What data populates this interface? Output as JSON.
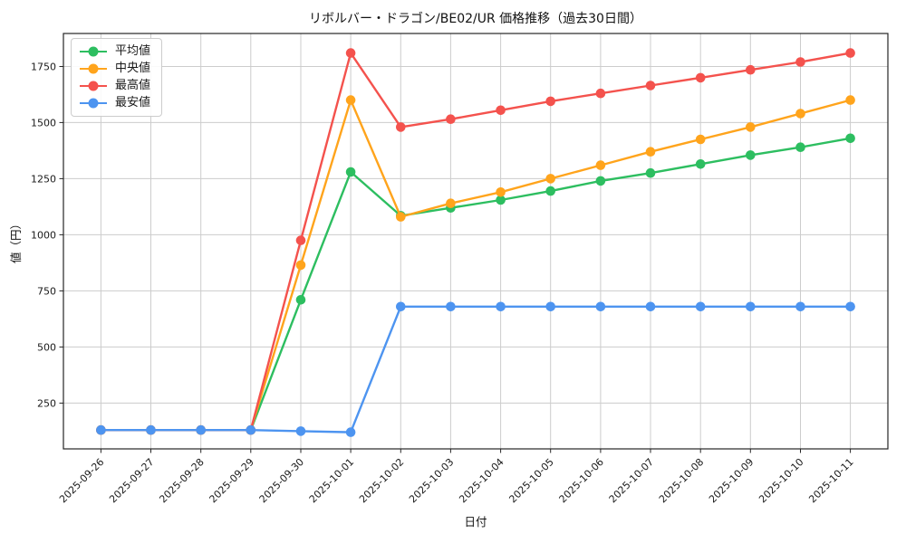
{
  "chart_data": {
    "type": "line",
    "title": "リボルバー・ドラゴン/BE02/UR 価格推移（過去30日間）",
    "xlabel": "日付",
    "ylabel": "値（円）",
    "grid": true,
    "legend_position": "upper-left",
    "ylim": [
      46,
      1897
    ],
    "yticks": [
      250,
      500,
      750,
      1000,
      1250,
      1500,
      1750
    ],
    "x": [
      "2025-09-26",
      "2025-09-27",
      "2025-09-28",
      "2025-09-29",
      "2025-09-30",
      "2025-10-01",
      "2025-10-02",
      "2025-10-03",
      "2025-10-04",
      "2025-10-05",
      "2025-10-06",
      "2025-10-07",
      "2025-10-08",
      "2025-10-09",
      "2025-10-10",
      "2025-10-11"
    ],
    "series": [
      {
        "key": "average",
        "name": "平均値",
        "color": "#2dbe60",
        "values": [
          130,
          130,
          130,
          130,
          710,
          1280,
          1085,
          1120,
          1155,
          1195,
          1240,
          1275,
          1315,
          1355,
          1390,
          1430
        ]
      },
      {
        "key": "median",
        "name": "中央値",
        "color": "#ffa41c",
        "values": [
          130,
          130,
          130,
          130,
          865,
          1600,
          1080,
          1140,
          1190,
          1250,
          1310,
          1370,
          1425,
          1480,
          1540,
          1600
        ]
      },
      {
        "key": "max",
        "name": "最高値",
        "color": "#f4524d",
        "values": [
          130,
          130,
          130,
          130,
          975,
          1810,
          1480,
          1515,
          1555,
          1595,
          1630,
          1665,
          1700,
          1735,
          1770,
          1810
        ]
      },
      {
        "key": "min",
        "name": "最安値",
        "color": "#4d94f0",
        "values": [
          130,
          130,
          130,
          130,
          125,
          120,
          680,
          680,
          680,
          680,
          680,
          680,
          680,
          680,
          680,
          680
        ]
      }
    ]
  }
}
